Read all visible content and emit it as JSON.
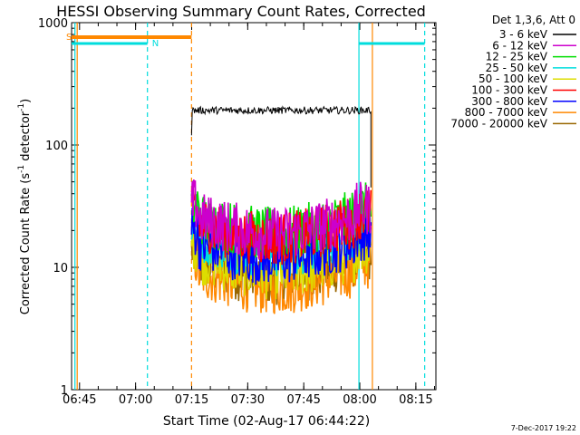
{
  "chart_data": {
    "type": "line",
    "title": "HESSI Observing Summary Count Rates, Corrected",
    "xlabel": "Start Time (02-Aug-17 06:44:22)",
    "ylabel": "Corrected Count Rate (s",
    "ylabel_sup1": "-1",
    "ylabel_mid": " detector",
    "ylabel_sup2": "-1",
    "ylabel_end": ")",
    "yscale": "log",
    "ylim": [
      1,
      1000
    ],
    "xlim_minutes_after_0644": [
      -1.5,
      96
    ],
    "xticks": [
      {
        "label": "06:45",
        "min": 0.633
      },
      {
        "label": "07:00",
        "min": 15.633
      },
      {
        "label": "07:15",
        "min": 30.633
      },
      {
        "label": "07:30",
        "min": 45.633
      },
      {
        "label": "07:45",
        "min": 60.633
      },
      {
        "label": "08:00",
        "min": 75.633
      },
      {
        "label": "08:15",
        "min": 90.633
      }
    ],
    "yticks": [
      {
        "label": "1",
        "v": 1
      },
      {
        "label": "10",
        "v": 10
      },
      {
        "label": "100",
        "v": 100
      },
      {
        "label": "1000",
        "v": 1000
      }
    ],
    "legend_title": "Det 1,3,6, Att 0",
    "data_window_minutes": [
      30.6,
      78.6
    ],
    "series": [
      {
        "name": "3 - 6 keV",
        "color": "#000000",
        "level": 192
      },
      {
        "name": "6 - 12 keV",
        "color": "#cc00cc",
        "level": 21
      },
      {
        "name": "12 - 25 keV",
        "color": "#00dd00",
        "level": 21
      },
      {
        "name": "25 - 50 keV",
        "color": "#00dddd",
        "level": 15
      },
      {
        "name": "50 - 100 keV",
        "color": "#dddd00",
        "level": 10
      },
      {
        "name": "100 - 300 keV",
        "color": "#ff0000",
        "level": 19
      },
      {
        "name": "300 - 800 keV",
        "color": "#0000ff",
        "level": 13
      },
      {
        "name": "800 - 7000 keV",
        "color": "#ff8800",
        "level": 7.5
      },
      {
        "name": "7000 - 20000 keV",
        "color": "#996600",
        "level": 9
      }
    ],
    "annotations": [
      {
        "label": "S",
        "color": "#ff8800"
      },
      {
        "label": "N",
        "color": "#00dddd"
      }
    ],
    "footer": "7-Dec-2017 19:22"
  }
}
